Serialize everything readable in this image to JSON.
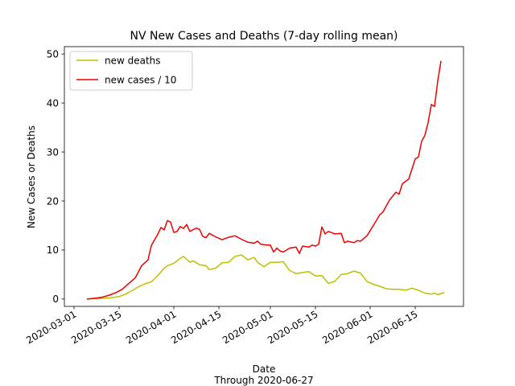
{
  "chart_data": {
    "type": "line",
    "title": "NV New Cases and Deaths (7-day rolling mean)",
    "xlabel": "Date",
    "xlabel_sub": "Through 2020-06-27",
    "ylabel": "New Cases or Deaths",
    "x_ticks": [
      "2020-03-01",
      "2020-03-15",
      "2020-04-01",
      "2020-04-15",
      "2020-05-01",
      "2020-05-15",
      "2020-06-01",
      "2020-06-15"
    ],
    "y_ticks": [
      0,
      10,
      20,
      30,
      40,
      50
    ],
    "ylim": [
      -1.5,
      51.5
    ],
    "xlim": [
      "2020-02-27",
      "2020-06-30"
    ],
    "legend_position": "top-left",
    "grid": false,
    "series": [
      {
        "name": "new deaths",
        "color": "#bfbf00",
        "points": [
          [
            "2020-03-05",
            0.0
          ],
          [
            "2020-03-09",
            0.1
          ],
          [
            "2020-03-12",
            0.2
          ],
          [
            "2020-03-15",
            0.5
          ],
          [
            "2020-03-17",
            1.0
          ],
          [
            "2020-03-19",
            1.7
          ],
          [
            "2020-03-21",
            2.5
          ],
          [
            "2020-03-23",
            3.1
          ],
          [
            "2020-03-25",
            3.5
          ],
          [
            "2020-03-27",
            4.8
          ],
          [
            "2020-03-29",
            6.3
          ],
          [
            "2020-03-30",
            6.8
          ],
          [
            "2020-04-01",
            7.3
          ],
          [
            "2020-04-03",
            8.3
          ],
          [
            "2020-04-04",
            8.7
          ],
          [
            "2020-04-06",
            7.5
          ],
          [
            "2020-04-07",
            7.8
          ],
          [
            "2020-04-09",
            7.0
          ],
          [
            "2020-04-11",
            6.8
          ],
          [
            "2020-04-12",
            6.0
          ],
          [
            "2020-04-14",
            6.3
          ],
          [
            "2020-04-16",
            7.4
          ],
          [
            "2020-04-18",
            7.5
          ],
          [
            "2020-04-20",
            8.7
          ],
          [
            "2020-04-22",
            9.0
          ],
          [
            "2020-04-24",
            8.0
          ],
          [
            "2020-04-26",
            8.5
          ],
          [
            "2020-04-27",
            7.5
          ],
          [
            "2020-04-29",
            6.6
          ],
          [
            "2020-05-01",
            7.5
          ],
          [
            "2020-05-03",
            7.5
          ],
          [
            "2020-05-05",
            7.6
          ],
          [
            "2020-05-07",
            5.8
          ],
          [
            "2020-05-09",
            5.2
          ],
          [
            "2020-05-11",
            5.4
          ],
          [
            "2020-05-13",
            5.6
          ],
          [
            "2020-05-15",
            4.7
          ],
          [
            "2020-05-17",
            4.8
          ],
          [
            "2020-05-19",
            3.2
          ],
          [
            "2020-05-21",
            3.6
          ],
          [
            "2020-05-23",
            5.0
          ],
          [
            "2020-05-25",
            5.2
          ],
          [
            "2020-05-27",
            5.7
          ],
          [
            "2020-05-29",
            5.3
          ],
          [
            "2020-05-31",
            3.6
          ],
          [
            "2020-06-02",
            3.0
          ],
          [
            "2020-06-04",
            2.6
          ],
          [
            "2020-06-06",
            2.1
          ],
          [
            "2020-06-08",
            2.0
          ],
          [
            "2020-06-10",
            2.0
          ],
          [
            "2020-06-12",
            1.8
          ],
          [
            "2020-06-14",
            2.2
          ],
          [
            "2020-06-16",
            1.8
          ],
          [
            "2020-06-18",
            1.2
          ],
          [
            "2020-06-20",
            1.0
          ],
          [
            "2020-06-21",
            1.2
          ],
          [
            "2020-06-22",
            0.9
          ],
          [
            "2020-06-24",
            1.3
          ]
        ]
      },
      {
        "name": "new cases / 10",
        "color": "#ee0000",
        "points": [
          [
            "2020-03-05",
            0.0
          ],
          [
            "2020-03-08",
            0.2
          ],
          [
            "2020-03-10",
            0.4
          ],
          [
            "2020-03-12",
            0.8
          ],
          [
            "2020-03-14",
            1.3
          ],
          [
            "2020-03-16",
            2.0
          ],
          [
            "2020-03-18",
            3.2
          ],
          [
            "2020-03-20",
            4.3
          ],
          [
            "2020-03-22",
            6.8
          ],
          [
            "2020-03-24",
            8.0
          ],
          [
            "2020-03-25",
            10.9
          ],
          [
            "2020-03-27",
            13.2
          ],
          [
            "2020-03-28",
            14.6
          ],
          [
            "2020-03-29",
            14.1
          ],
          [
            "2020-03-30",
            16.0
          ],
          [
            "2020-03-31",
            15.7
          ],
          [
            "2020-04-01",
            13.6
          ],
          [
            "2020-04-02",
            13.8
          ],
          [
            "2020-04-03",
            14.8
          ],
          [
            "2020-04-04",
            14.4
          ],
          [
            "2020-04-05",
            15.2
          ],
          [
            "2020-04-06",
            13.8
          ],
          [
            "2020-04-08",
            14.5
          ],
          [
            "2020-04-09",
            14.2
          ],
          [
            "2020-04-10",
            12.8
          ],
          [
            "2020-04-11",
            12.5
          ],
          [
            "2020-04-12",
            13.4
          ],
          [
            "2020-04-14",
            12.7
          ],
          [
            "2020-04-16",
            12.1
          ],
          [
            "2020-04-18",
            12.6
          ],
          [
            "2020-04-20",
            12.9
          ],
          [
            "2020-04-22",
            12.2
          ],
          [
            "2020-04-24",
            11.6
          ],
          [
            "2020-04-26",
            11.4
          ],
          [
            "2020-04-27",
            11.8
          ],
          [
            "2020-04-28",
            11.2
          ],
          [
            "2020-04-30",
            11.0
          ],
          [
            "2020-05-01",
            11.0
          ],
          [
            "2020-05-02",
            9.6
          ],
          [
            "2020-05-03",
            10.4
          ],
          [
            "2020-05-04",
            9.8
          ],
          [
            "2020-05-05",
            9.6
          ],
          [
            "2020-05-07",
            10.4
          ],
          [
            "2020-05-09",
            10.6
          ],
          [
            "2020-05-10",
            9.3
          ],
          [
            "2020-05-11",
            10.8
          ],
          [
            "2020-05-13",
            10.6
          ],
          [
            "2020-05-14",
            11.0
          ],
          [
            "2020-05-15",
            10.8
          ],
          [
            "2020-05-16",
            11.2
          ],
          [
            "2020-05-17",
            14.7
          ],
          [
            "2020-05-18",
            13.3
          ],
          [
            "2020-05-19",
            13.8
          ],
          [
            "2020-05-21",
            13.3
          ],
          [
            "2020-05-23",
            13.4
          ],
          [
            "2020-05-24",
            11.5
          ],
          [
            "2020-05-25",
            11.8
          ],
          [
            "2020-05-27",
            11.5
          ],
          [
            "2020-05-28",
            11.9
          ],
          [
            "2020-05-29",
            11.8
          ],
          [
            "2020-05-31",
            12.9
          ],
          [
            "2020-06-02",
            15.0
          ],
          [
            "2020-06-04",
            17.2
          ],
          [
            "2020-06-05",
            17.8
          ],
          [
            "2020-06-07",
            20.2
          ],
          [
            "2020-06-09",
            21.8
          ],
          [
            "2020-06-10",
            21.4
          ],
          [
            "2020-06-11",
            23.5
          ],
          [
            "2020-06-13",
            24.5
          ],
          [
            "2020-06-15",
            28.6
          ],
          [
            "2020-06-16",
            29.0
          ],
          [
            "2020-06-17",
            32.2
          ],
          [
            "2020-06-18",
            33.4
          ],
          [
            "2020-06-19",
            36.0
          ],
          [
            "2020-06-20",
            39.7
          ],
          [
            "2020-06-21",
            39.3
          ],
          [
            "2020-06-22",
            44.5
          ],
          [
            "2020-06-23",
            48.6
          ]
        ]
      }
    ]
  }
}
